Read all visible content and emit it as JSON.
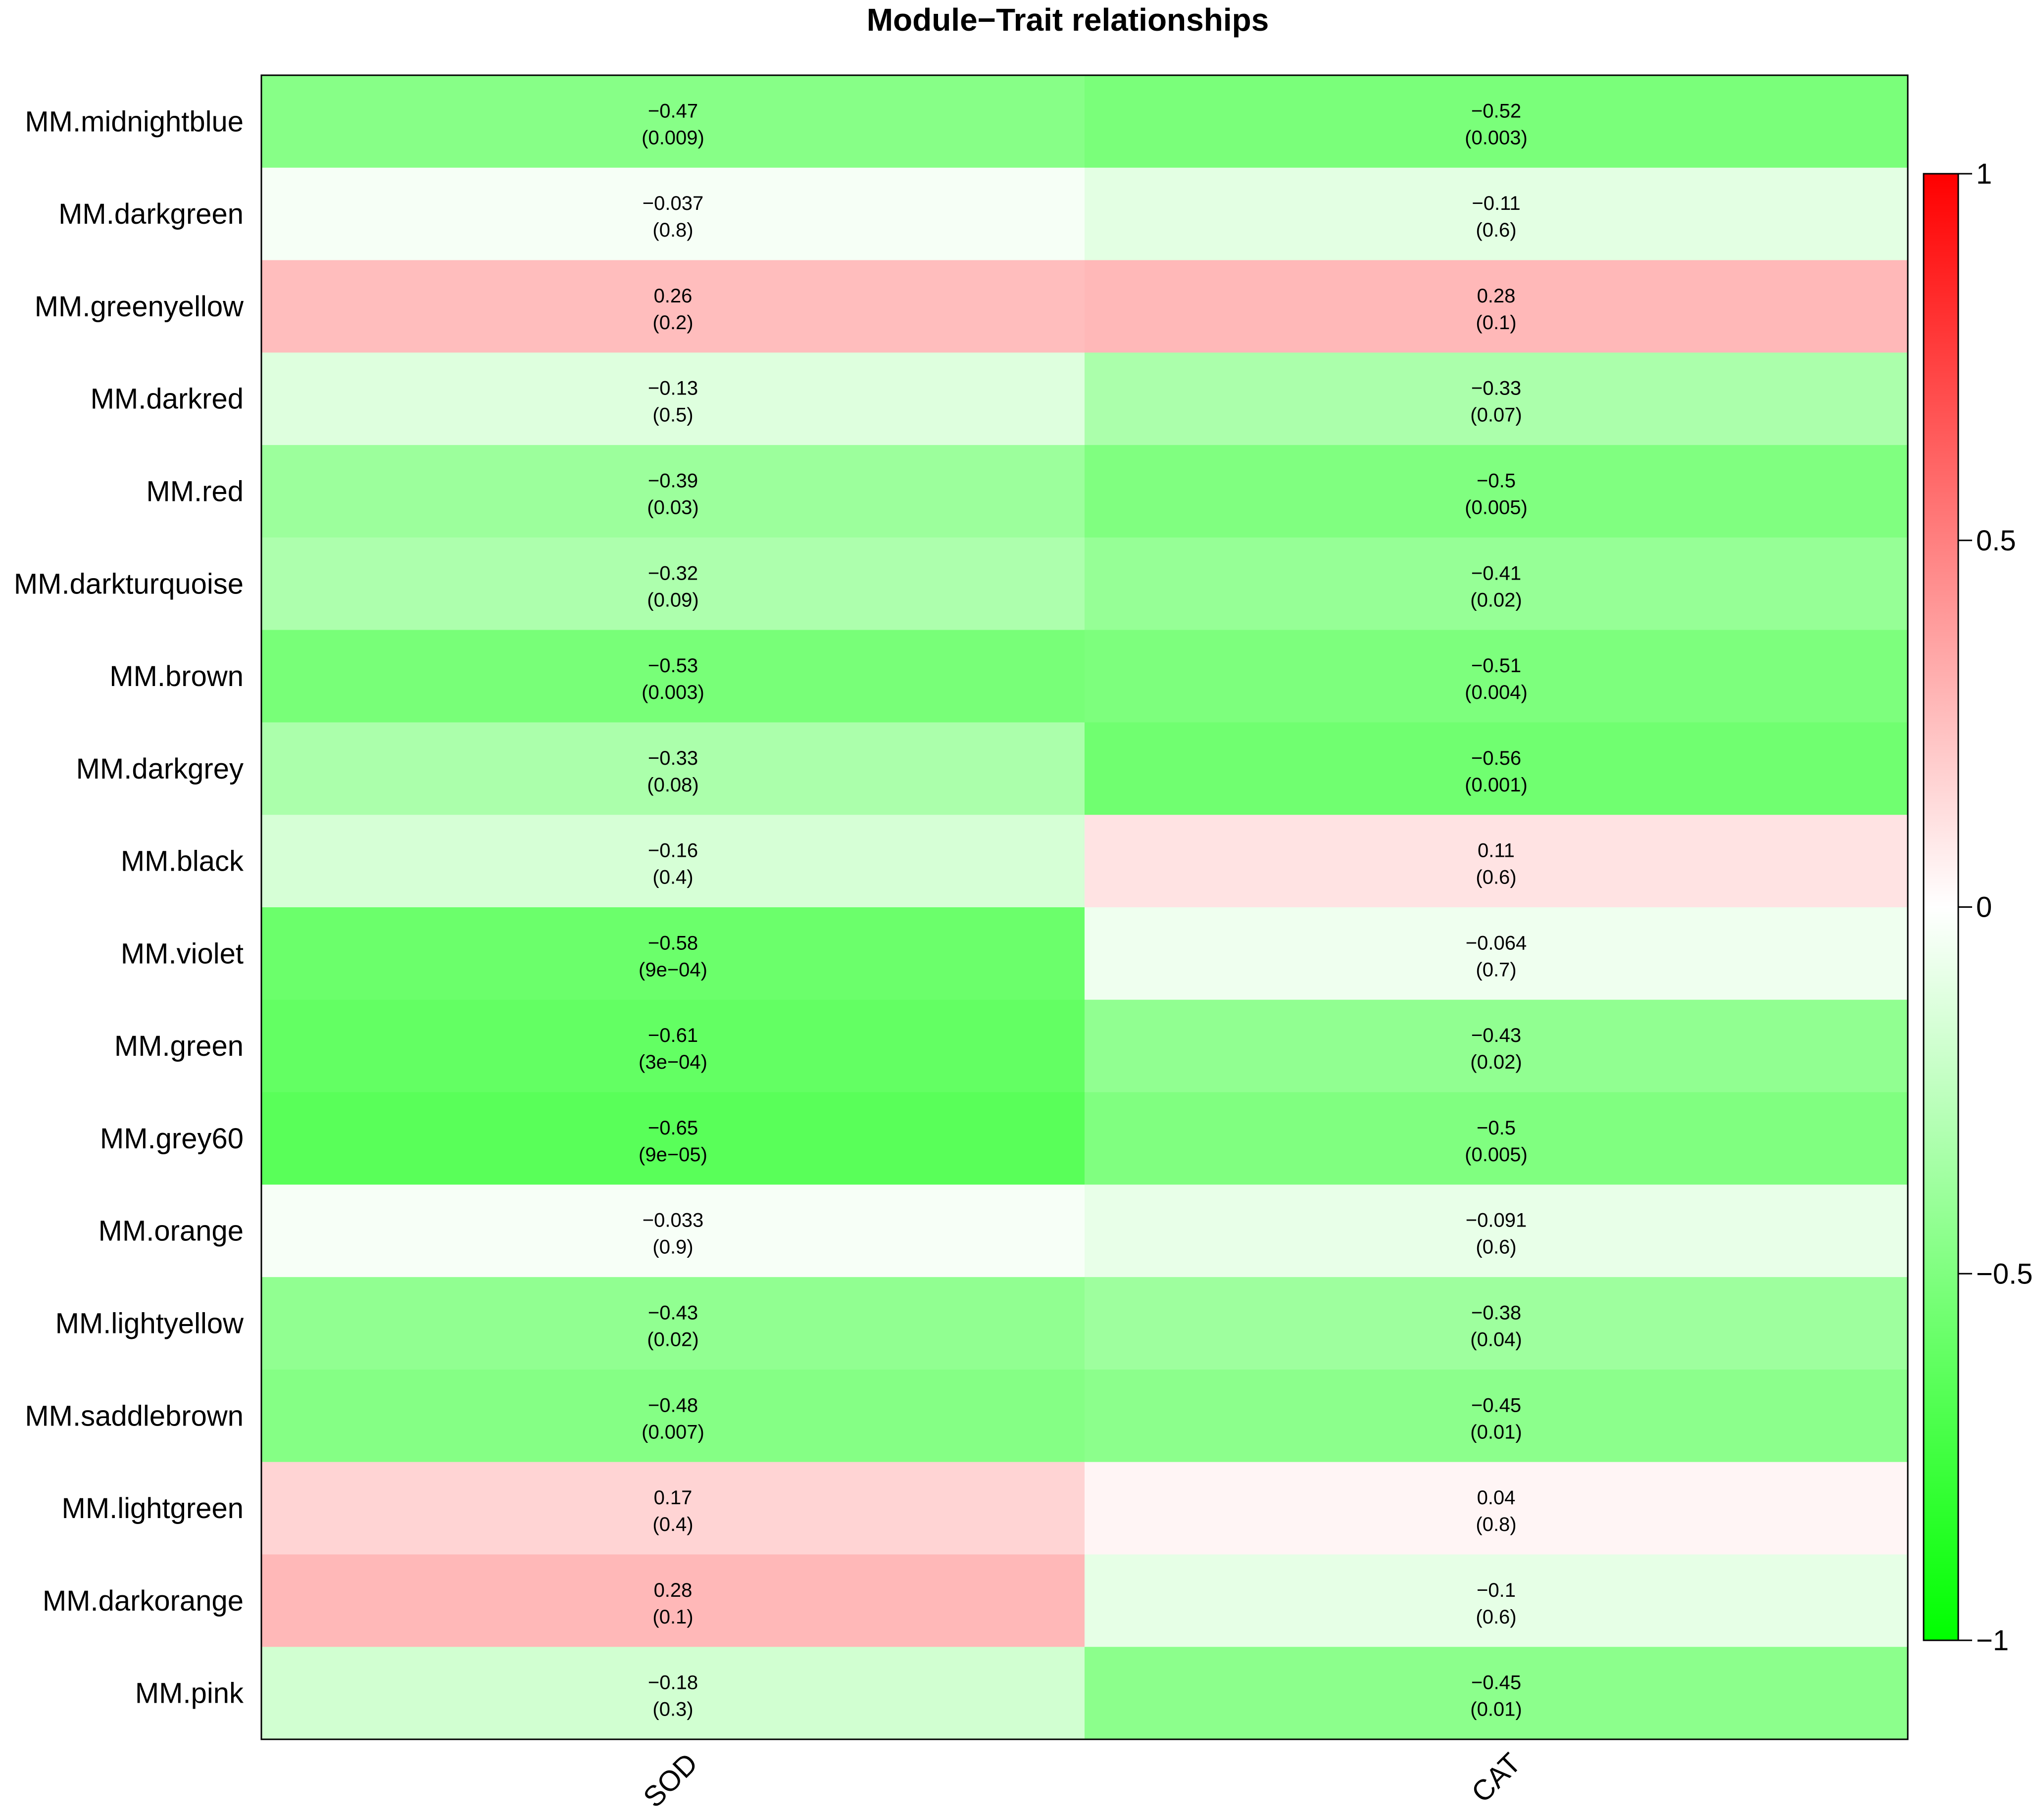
{
  "chart_data": {
    "type": "heatmap",
    "title": "Module−Trait relationships",
    "xlabel": "",
    "ylabel": "",
    "rows": [
      "MM.midnightblue",
      "MM.darkgreen",
      "MM.greenyellow",
      "MM.darkred",
      "MM.red",
      "MM.darkturquoise",
      "MM.brown",
      "MM.darkgrey",
      "MM.black",
      "MM.violet",
      "MM.green",
      "MM.grey60",
      "MM.orange",
      "MM.lightyellow",
      "MM.saddlebrown",
      "MM.lightgreen",
      "MM.darkorange",
      "MM.pink"
    ],
    "columns": [
      "SOD",
      "CAT"
    ],
    "values": [
      [
        -0.47,
        -0.52
      ],
      [
        -0.037,
        -0.11
      ],
      [
        0.26,
        0.28
      ],
      [
        -0.13,
        -0.33
      ],
      [
        -0.39,
        -0.5
      ],
      [
        -0.32,
        -0.41
      ],
      [
        -0.53,
        -0.51
      ],
      [
        -0.33,
        -0.56
      ],
      [
        -0.16,
        0.11
      ],
      [
        -0.58,
        -0.064
      ],
      [
        -0.61,
        -0.43
      ],
      [
        -0.65,
        -0.5
      ],
      [
        -0.033,
        -0.091
      ],
      [
        -0.43,
        -0.38
      ],
      [
        -0.48,
        -0.45
      ],
      [
        0.17,
        0.04
      ],
      [
        0.28,
        -0.1
      ],
      [
        -0.18,
        -0.45
      ]
    ],
    "value_labels": [
      [
        "−0.47",
        "−0.52"
      ],
      [
        "−0.037",
        "−0.11"
      ],
      [
        "0.26",
        "0.28"
      ],
      [
        "−0.13",
        "−0.33"
      ],
      [
        "−0.39",
        "−0.5"
      ],
      [
        "−0.32",
        "−0.41"
      ],
      [
        "−0.53",
        "−0.51"
      ],
      [
        "−0.33",
        "−0.56"
      ],
      [
        "−0.16",
        "0.11"
      ],
      [
        "−0.58",
        "−0.064"
      ],
      [
        "−0.61",
        "−0.43"
      ],
      [
        "−0.65",
        "−0.5"
      ],
      [
        "−0.033",
        "−0.091"
      ],
      [
        "−0.43",
        "−0.38"
      ],
      [
        "−0.48",
        "−0.45"
      ],
      [
        "0.17",
        "0.04"
      ],
      [
        "0.28",
        "−0.1"
      ],
      [
        "−0.18",
        "−0.45"
      ]
    ],
    "pvalue_labels": [
      [
        "(0.009)",
        "(0.003)"
      ],
      [
        "(0.8)",
        "(0.6)"
      ],
      [
        "(0.2)",
        "(0.1)"
      ],
      [
        "(0.5)",
        "(0.07)"
      ],
      [
        "(0.03)",
        "(0.005)"
      ],
      [
        "(0.09)",
        "(0.02)"
      ],
      [
        "(0.003)",
        "(0.004)"
      ],
      [
        "(0.08)",
        "(0.001)"
      ],
      [
        "(0.4)",
        "(0.6)"
      ],
      [
        "(9e−04)",
        "(0.7)"
      ],
      [
        "(3e−04)",
        "(0.02)"
      ],
      [
        "(9e−05)",
        "(0.005)"
      ],
      [
        "(0.9)",
        "(0.6)"
      ],
      [
        "(0.02)",
        "(0.04)"
      ],
      [
        "(0.007)",
        "(0.01)"
      ],
      [
        "(0.4)",
        "(0.8)"
      ],
      [
        "(0.1)",
        "(0.6)"
      ],
      [
        "(0.3)",
        "(0.01)"
      ]
    ],
    "color_scale": {
      "range": [
        -1,
        1
      ],
      "low_color": "#00ff00",
      "mid_color": "#ffffff",
      "high_color": "#ff0000",
      "ticks": [
        1,
        0.5,
        0,
        -0.5,
        -1
      ],
      "tick_labels": [
        "1",
        "0.5",
        "0",
        "−0.5",
        "−1"
      ],
      "position": "right"
    },
    "grid": false
  }
}
